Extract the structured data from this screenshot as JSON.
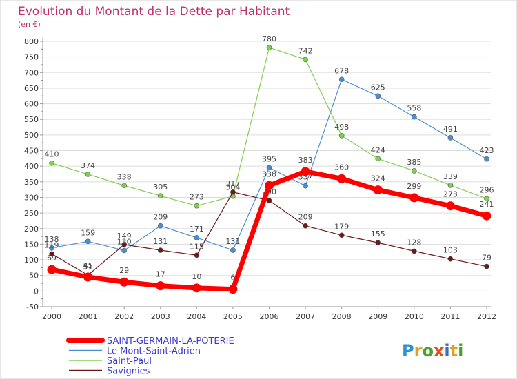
{
  "chart_data": {
    "type": "line",
    "title": "Evolution du Montant de la Dette par Habitant",
    "subtitle": "(en €)",
    "x": [
      "2000",
      "2001",
      "2002",
      "2003",
      "2004",
      "2005",
      "2006",
      "2007",
      "2008",
      "2009",
      "2010",
      "2011",
      "2012"
    ],
    "ylim": [
      -50,
      800
    ],
    "yticks": [
      -50,
      0,
      50,
      100,
      150,
      200,
      250,
      300,
      350,
      400,
      450,
      500,
      550,
      600,
      650,
      700,
      750,
      800
    ],
    "grid": "horizontal",
    "legend_position": "bottom-left",
    "series": [
      {
        "name": "SAINT-GERMAIN-LA-POTERIE",
        "color": "#ff0000",
        "values": [
          69,
          45,
          29,
          17,
          10,
          6,
          338,
          383,
          360,
          324,
          299,
          273,
          241
        ]
      },
      {
        "name": "Le Mont-Saint-Adrien",
        "color": "#4a8fd0",
        "values": [
          138,
          159,
          130,
          209,
          171,
          131,
          395,
          337,
          678,
          625,
          558,
          491,
          423
        ]
      },
      {
        "name": "Saint-Paul",
        "color": "#80d050",
        "values": [
          410,
          374,
          338,
          305,
          273,
          304,
          780,
          742,
          498,
          424,
          385,
          339,
          296
        ]
      },
      {
        "name": "Savignies",
        "color": "#6b1a1a",
        "values": [
          119,
          51,
          149,
          131,
          115,
          317,
          290,
          209,
          179,
          155,
          128,
          103,
          79
        ]
      }
    ]
  },
  "logo": {
    "text": "Proxiti"
  }
}
